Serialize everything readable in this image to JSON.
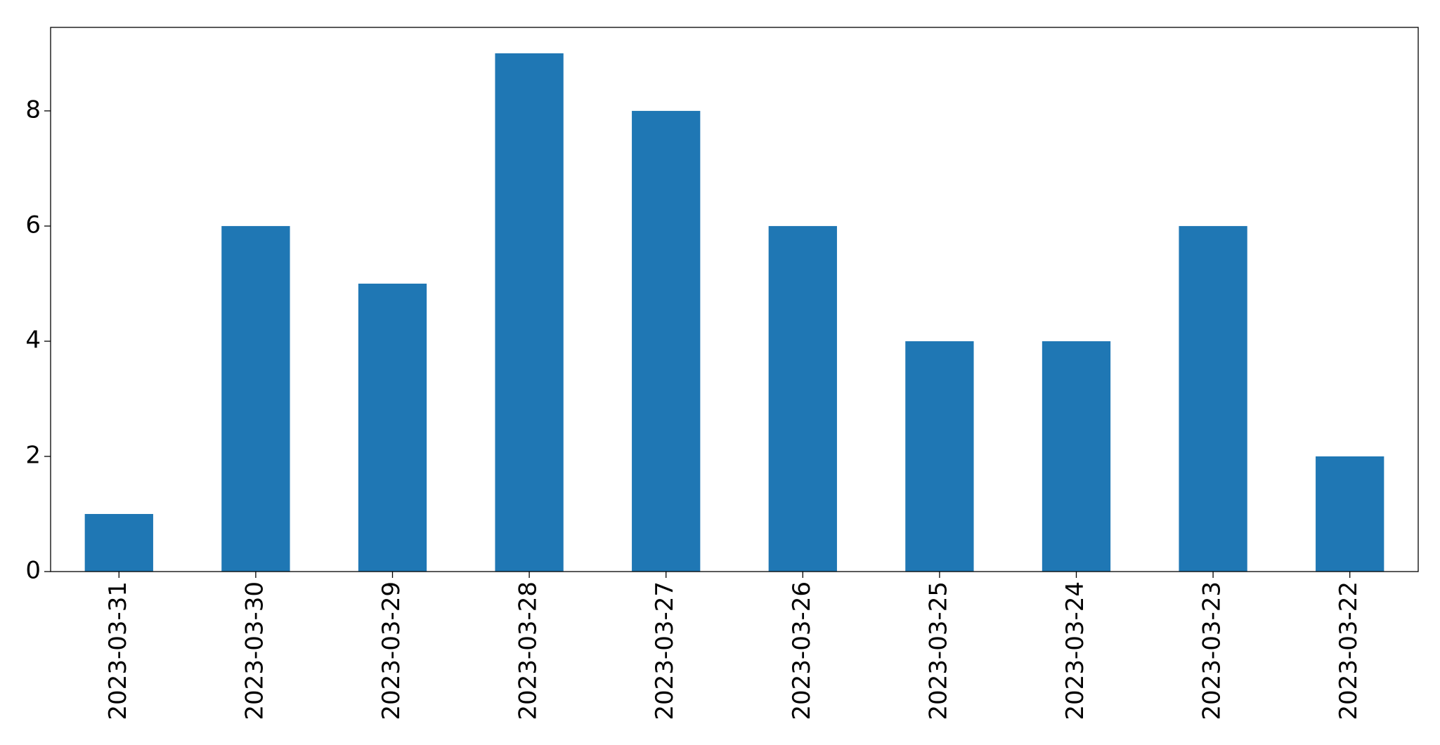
{
  "chart_data": {
    "type": "bar",
    "categories": [
      "2023-03-31",
      "2023-03-30",
      "2023-03-29",
      "2023-03-28",
      "2023-03-27",
      "2023-03-26",
      "2023-03-25",
      "2023-03-24",
      "2023-03-23",
      "2023-03-22"
    ],
    "values": [
      1,
      6,
      5,
      9,
      8,
      6,
      4,
      4,
      6,
      2
    ],
    "color": "#1f77b4",
    "ylim": [
      0,
      9.45
    ],
    "yticks": [
      0,
      2,
      4,
      6,
      8
    ],
    "grid": false
  }
}
